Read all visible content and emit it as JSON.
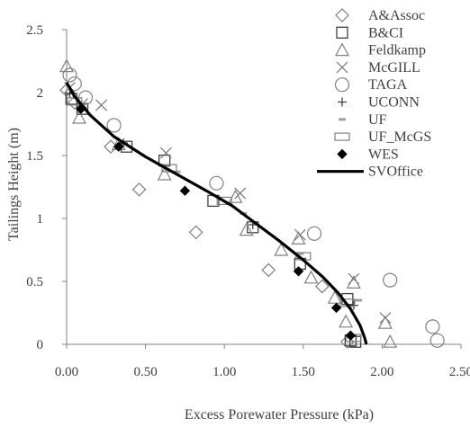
{
  "chart_data": {
    "type": "scatter",
    "title": "",
    "xlabel": "Excess Porewater Pressure (kPa)",
    "ylabel": "Tailings Height (m)",
    "xlim": [
      0,
      2.5
    ],
    "ylim": [
      0,
      2.5
    ],
    "x_ticks": [
      "0.00",
      "0.50",
      "1.00",
      "1.50",
      "2.00",
      "2.50"
    ],
    "y_ticks": [
      "0",
      "0.5",
      "1",
      "1.5",
      "2",
      "2.5"
    ],
    "grid": false,
    "legend_position": "top-right",
    "series": [
      {
        "name": "A&Assoc",
        "marker": "diamond-open",
        "color": "#808080",
        "points": [
          [
            0.0,
            2.02
          ],
          [
            0.05,
            1.92
          ],
          [
            0.28,
            1.57
          ],
          [
            0.46,
            1.23
          ],
          [
            0.82,
            0.89
          ],
          [
            1.28,
            0.59
          ],
          [
            1.62,
            0.46
          ],
          [
            1.78,
            0.02
          ]
        ]
      },
      {
        "name": "B&CI",
        "marker": "square-open",
        "color": "#404040",
        "points": [
          [
            0.03,
            1.95
          ],
          [
            0.1,
            1.87
          ],
          [
            0.38,
            1.57
          ],
          [
            0.62,
            1.46
          ],
          [
            0.93,
            1.14
          ],
          [
            1.18,
            0.93
          ],
          [
            1.48,
            0.64
          ],
          [
            1.78,
            0.36
          ],
          [
            1.8,
            0.03
          ],
          [
            1.83,
            0.02
          ]
        ]
      },
      {
        "name": "Feldkamp",
        "marker": "triangle-open",
        "color": "#808080",
        "points": [
          [
            0.0,
            2.21
          ],
          [
            0.08,
            1.8
          ],
          [
            0.33,
            1.59
          ],
          [
            0.62,
            1.35
          ],
          [
            1.07,
            1.17
          ],
          [
            1.14,
            0.91
          ],
          [
            1.36,
            0.75
          ],
          [
            1.47,
            0.84
          ],
          [
            1.55,
            0.53
          ],
          [
            1.7,
            0.37
          ],
          [
            1.77,
            0.18
          ],
          [
            1.82,
            0.49
          ],
          [
            2.02,
            0.17
          ],
          [
            2.05,
            0.02
          ]
        ]
      },
      {
        "name": "McGILL",
        "marker": "x",
        "color": "#808080",
        "points": [
          [
            0.02,
            2.04
          ],
          [
            0.1,
            1.91
          ],
          [
            0.22,
            1.9
          ],
          [
            0.63,
            1.52
          ],
          [
            1.1,
            1.2
          ],
          [
            1.48,
            0.87
          ],
          [
            1.82,
            0.52
          ],
          [
            2.02,
            0.21
          ]
        ]
      },
      {
        "name": "TAGA",
        "marker": "circle-open",
        "color": "#808080",
        "points": [
          [
            0.02,
            2.14
          ],
          [
            0.05,
            2.07
          ],
          [
            0.12,
            1.96
          ],
          [
            0.3,
            1.74
          ],
          [
            0.95,
            1.28
          ],
          [
            1.57,
            0.88
          ],
          [
            2.05,
            0.51
          ],
          [
            2.32,
            0.14
          ],
          [
            2.35,
            0.03
          ]
        ]
      },
      {
        "name": "UCONN",
        "marker": "plus",
        "color": "#404040",
        "points": [
          [
            0.02,
            1.99
          ],
          [
            0.36,
            1.6
          ],
          [
            1.18,
            0.95
          ],
          [
            1.82,
            0.31
          ]
        ]
      },
      {
        "name": "UF",
        "marker": "dash",
        "color": "#a0a0a0",
        "points": [
          [
            0.06,
            1.96
          ],
          [
            0.7,
            1.37
          ],
          [
            1.12,
            1.04
          ],
          [
            1.48,
            0.72
          ],
          [
            1.85,
            0.35
          ]
        ]
      },
      {
        "name": "UF_McGS",
        "marker": "rect-open",
        "color": "#808080",
        "points": [
          [
            0.05,
            1.93
          ],
          [
            0.65,
            1.4
          ],
          [
            1.0,
            1.14
          ],
          [
            1.5,
            0.7
          ],
          [
            1.78,
            0.33
          ],
          [
            1.82,
            0.05
          ]
        ]
      },
      {
        "name": "WES",
        "marker": "diamond-filled",
        "color": "#000000",
        "points": [
          [
            0.09,
            1.87
          ],
          [
            0.33,
            1.57
          ],
          [
            0.75,
            1.22
          ],
          [
            1.47,
            0.58
          ],
          [
            1.71,
            0.29
          ],
          [
            1.8,
            0.07
          ]
        ]
      },
      {
        "name": "SVOffice",
        "marker": "line",
        "color": "#000000",
        "points": [
          [
            0.0,
            2.08
          ],
          [
            0.05,
            1.97
          ],
          [
            0.15,
            1.82
          ],
          [
            0.3,
            1.65
          ],
          [
            0.5,
            1.49
          ],
          [
            0.7,
            1.35
          ],
          [
            0.9,
            1.21
          ],
          [
            1.05,
            1.1
          ],
          [
            1.2,
            0.96
          ],
          [
            1.35,
            0.82
          ],
          [
            1.5,
            0.67
          ],
          [
            1.62,
            0.54
          ],
          [
            1.72,
            0.41
          ],
          [
            1.8,
            0.28
          ],
          [
            1.86,
            0.15
          ],
          [
            1.89,
            0.05
          ],
          [
            1.9,
            0.0
          ]
        ]
      }
    ]
  }
}
